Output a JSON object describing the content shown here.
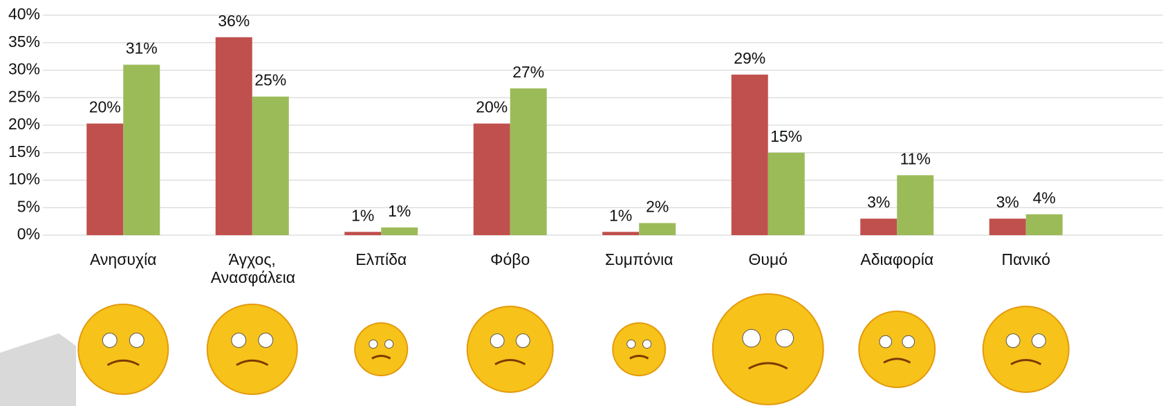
{
  "chart_data": {
    "type": "bar",
    "categories": [
      "Ανησυχία",
      "Άγχος, Ανασφάλεια",
      "Ελπίδα",
      "Φόβο",
      "Συμπόνια",
      "Θυμό",
      "Αδιαφορία",
      "Πανικό"
    ],
    "series": [
      {
        "color": "#c0504d",
        "values": [
          20.3,
          36,
          0.6,
          20.3,
          0.6,
          29.2,
          3,
          3
        ],
        "value_labels": [
          "20%",
          "36%",
          "1%",
          "20%",
          "1%",
          "29%",
          "3%",
          "3%"
        ]
      },
      {
        "color": "#9bbb59",
        "values": [
          31,
          25.2,
          1.4,
          26.7,
          2.2,
          15,
          10.9,
          3.8
        ],
        "value_labels": [
          "31%",
          "25%",
          "1%",
          "27%",
          "2%",
          "15%",
          "11%",
          "4%"
        ]
      }
    ],
    "ylim": [
      0,
      40
    ],
    "yticks": [
      {
        "value": 0,
        "label": "0%"
      },
      {
        "value": 5,
        "label": "5%"
      },
      {
        "value": 10,
        "label": "10%"
      },
      {
        "value": 15,
        "label": "15%"
      },
      {
        "value": 20,
        "label": "20%"
      },
      {
        "value": 25,
        "label": "25%"
      },
      {
        "value": 30,
        "label": "30%"
      },
      {
        "value": 35,
        "label": "35%"
      },
      {
        "value": 40,
        "label": "40%"
      }
    ],
    "grid": true
  }
}
